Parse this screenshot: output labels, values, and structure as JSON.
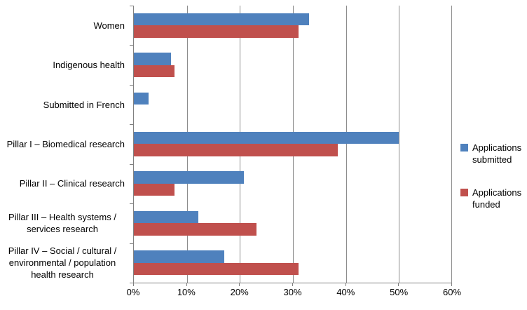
{
  "chart_data": {
    "type": "bar",
    "orientation": "horizontal",
    "title": "",
    "xlabel": "",
    "ylabel": "",
    "categories": [
      "Women",
      "Indigenous health",
      "Submitted in French",
      "Pillar I – Biomedical research",
      "Pillar II – Clinical research",
      "Pillar III – Health systems / services research",
      "Pillar IV – Social / cultural / environmental / population health research"
    ],
    "series": [
      {
        "name": "Applications submitted",
        "color": "#4F81BD",
        "values": [
          33,
          7,
          2.8,
          50,
          20.7,
          12.1,
          17.1
        ]
      },
      {
        "name": "Applications funded",
        "color": "#C0504D",
        "values": [
          31,
          7.7,
          0,
          38.5,
          7.7,
          23.1,
          31
        ]
      }
    ],
    "xlim": [
      0,
      60
    ],
    "x_tick_labels": [
      "0%",
      "10%",
      "20%",
      "30%",
      "40%",
      "50%",
      "60%"
    ],
    "grid": true,
    "gridline_color": "#8C8C8C",
    "axis_color": "#808080",
    "legend_position": "right"
  },
  "legend": {
    "items": [
      {
        "label": "Applications submitted",
        "color": "#4F81BD"
      },
      {
        "label": "Applications funded",
        "color": "#C0504D"
      }
    ]
  }
}
